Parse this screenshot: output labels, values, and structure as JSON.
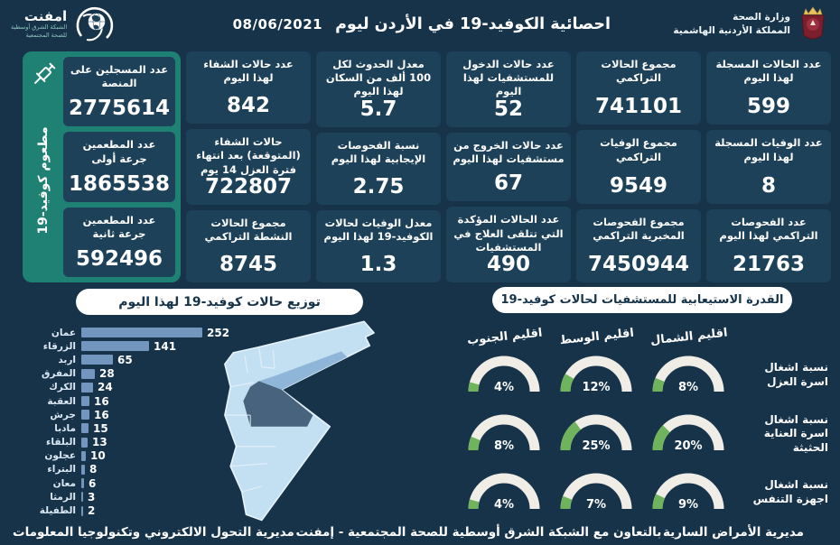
{
  "header": {
    "title": "احصائية الكوفيد-19 في الأردن ليوم",
    "date": "08/06/2021",
    "moh": {
      "line1": "وزارة الصحة",
      "line2": "المملكة الأردنية الهاشمية"
    },
    "emphnet": {
      "name": "امفنت",
      "sub1": "الشبكة الشرق أوسطية",
      "sub2": "للصحة المجتمعية"
    }
  },
  "stats": {
    "columns": [
      {
        "cards": [
          {
            "label": "عدد الحالات المسجلة لهذا اليوم",
            "value": "599"
          },
          {
            "label": "عدد الوفيات المسجلة لهذا اليوم",
            "value": "8"
          },
          {
            "label": "عدد الفحوصات التراكمي لهذا اليوم",
            "value": "21763"
          }
        ]
      },
      {
        "cards": [
          {
            "label": "مجموع الحالات التراكمي",
            "value": "741101"
          },
          {
            "label": "مجموع الوفيات التراكمي",
            "value": "9549"
          },
          {
            "label": "مجموع الفحوصات المخبرية التراكمي",
            "value": "7450944"
          }
        ]
      },
      {
        "cards": [
          {
            "label": "عدد حالات الدخول للمستشفيات لهذا اليوم",
            "value": "52"
          },
          {
            "label": "عدد حالات الخروج من مستشفيات لهذا اليوم",
            "value": "67"
          },
          {
            "label": "عدد الحالات المؤكدة التي تتلقى العلاج في المستشفيات",
            "value": "490"
          }
        ]
      },
      {
        "cards": [
          {
            "label": "معدل الحدوث لكل 100 ألف من السكان لهذا اليوم",
            "value": "5.7"
          },
          {
            "label": "نسبة الفحوصات الإيجابية لهذا اليوم",
            "value": "2.75"
          },
          {
            "label": "معدل الوفيات لحالات الكوفيد-19 لهذا اليوم",
            "value": "1.3"
          }
        ]
      },
      {
        "cards": [
          {
            "label": "عدد حالات الشفاء لهذا اليوم",
            "value": "842"
          },
          {
            "label": "حالات الشفاء (المتوقعة) بعد انتهاء فترة العزل 14 يوم",
            "value": "722807"
          },
          {
            "label": "مجموع الحالات النشطة التراكمي",
            "value": "8745"
          }
        ]
      }
    ]
  },
  "vaccine_panel": {
    "side_label": "مطعوم كوفيد-19",
    "cards": [
      {
        "label": "عدد المسجلين على المنصة",
        "value": "2775614"
      },
      {
        "label": "عدد المطعمين جرعة أولى",
        "value": "1865538"
      },
      {
        "label": "عدد المطعمين جرعة ثانية",
        "value": "592496"
      }
    ]
  },
  "chart_data": [
    {
      "type": "bar",
      "orientation": "horizontal",
      "title": "توزيع حالات كوفيد-19 لهذا اليوم",
      "categories": [
        "عمان",
        "الزرقاء",
        "اربد",
        "المفرق",
        "الكرك",
        "العقبة",
        "جرش",
        "مادبا",
        "البلقاء",
        "عجلون",
        "البتراء",
        "معان",
        "الرمثا",
        "الطفيلة"
      ],
      "values": [
        252,
        141,
        65,
        28,
        24,
        16,
        16,
        15,
        13,
        10,
        8,
        6,
        3,
        2
      ],
      "xlim": [
        0,
        260
      ],
      "bar_color": "#7296BE"
    },
    {
      "type": "gauge-grid",
      "title": "القدرة الاستيعابية للمستشفيات لحالات كوفيد-19",
      "unit": "%",
      "columns": [
        "اقليم الشمال",
        "اقليم الوسط",
        "اقليم الجنوب"
      ],
      "rows": [
        {
          "label": "نسبة اشغال اسرة العزل",
          "values": [
            8,
            12,
            4
          ]
        },
        {
          "label": "نسبة اشغال اسرة العناية الحثيثة",
          "values": [
            20,
            25,
            8
          ]
        },
        {
          "label": "نسبة اشغال اجهزة التنفس",
          "values": [
            9,
            7,
            4
          ]
        }
      ]
    }
  ],
  "map": {
    "country": "الأردن",
    "highlight_dark_region": "عمان",
    "highlight_medium_region": "الزرقاء"
  },
  "footer": {
    "right": "مديرية الأمراض السارية",
    "center": "بالتعاون مع الشبكة الشرق أوسطية للصحة المجتمعية - إمفنت",
    "left": "مديرية التحول الالكتروني وتكنولوجيا المعلومات"
  },
  "colors": {
    "background": "#16334A",
    "card": "#1C4159",
    "accent_teal": "#1F8173",
    "bar": "#7296BE",
    "gauge_green": "#6FB45C",
    "gauge_track": "#EFEDE6",
    "map_light": "#C3E0F2",
    "map_medium": "#8FB6D8",
    "map_dark": "#47637E",
    "badge_bg": "#FFFFFF",
    "badge_text": "#16334A"
  }
}
